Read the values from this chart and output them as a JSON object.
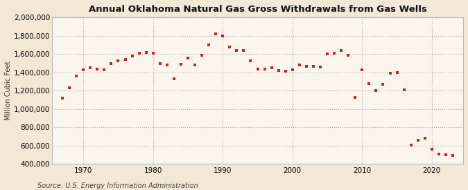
{
  "title": "Annual Oklahoma Natural Gas Gross Withdrawals from Gas Wells",
  "ylabel": "Million Cubic Feet",
  "source": "Source: U.S. Energy Information Administration",
  "background_color": "#f2e8d5",
  "plot_background_color": "#faf6ee",
  "marker_color": "#cc2222",
  "years": [
    1967,
    1968,
    1969,
    1970,
    1971,
    1972,
    1973,
    1974,
    1975,
    1976,
    1977,
    1978,
    1979,
    1980,
    1981,
    1982,
    1983,
    1984,
    1985,
    1986,
    1987,
    1988,
    1989,
    1990,
    1991,
    1992,
    1993,
    1994,
    1995,
    1996,
    1997,
    1998,
    1999,
    2000,
    2001,
    2002,
    2003,
    2004,
    2005,
    2006,
    2007,
    2008,
    2009,
    2010,
    2011,
    2012,
    2013,
    2014,
    2015,
    2016,
    2017,
    2018,
    2019,
    2020,
    2021,
    2022,
    2023
  ],
  "values": [
    1120000,
    1230000,
    1360000,
    1430000,
    1450000,
    1440000,
    1430000,
    1500000,
    1530000,
    1540000,
    1580000,
    1610000,
    1620000,
    1610000,
    1500000,
    1480000,
    1330000,
    1490000,
    1560000,
    1480000,
    1590000,
    1700000,
    1820000,
    1800000,
    1680000,
    1640000,
    1640000,
    1530000,
    1440000,
    1440000,
    1450000,
    1420000,
    1410000,
    1430000,
    1480000,
    1470000,
    1470000,
    1460000,
    1600000,
    1610000,
    1640000,
    1590000,
    1130000,
    1430000,
    1280000,
    1200000,
    1270000,
    1390000,
    1400000,
    1210000,
    610000,
    660000,
    680000,
    560000,
    510000,
    500000,
    490000
  ],
  "ylim": [
    400000,
    2000000
  ],
  "yticks": [
    400000,
    600000,
    800000,
    1000000,
    1200000,
    1400000,
    1600000,
    1800000,
    2000000
  ],
  "xticks": [
    1970,
    1980,
    1990,
    2000,
    2010,
    2020
  ],
  "xlim": [
    1965.5,
    2024.5
  ]
}
